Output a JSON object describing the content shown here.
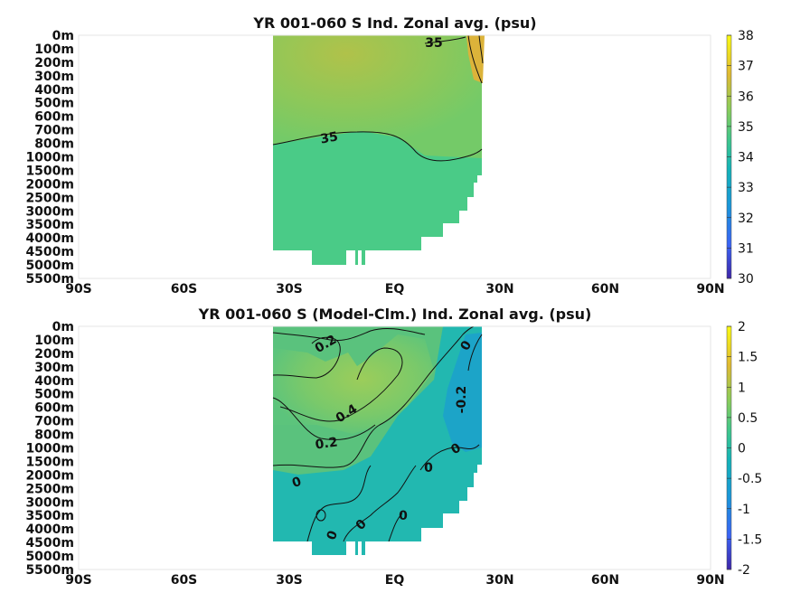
{
  "chart_data": [
    {
      "type": "heatmap",
      "title": "YR 001-060 S Ind. Zonal avg. (psu)",
      "x_ticks": [
        "90S",
        "60S",
        "30S",
        "EQ",
        "30N",
        "60N",
        "90N"
      ],
      "y_ticks": [
        "0m",
        "100m",
        "200m",
        "300m",
        "400m",
        "500m",
        "600m",
        "700m",
        "800m",
        "1000m",
        "1500m",
        "2000m",
        "2500m",
        "3000m",
        "3500m",
        "4000m",
        "4500m",
        "5000m",
        "5500m"
      ],
      "colorbar": {
        "min": 30,
        "max": 38,
        "ticks": [
          "30",
          "31",
          "32",
          "33",
          "34",
          "35",
          "36",
          "37",
          "38"
        ]
      },
      "data_extent_lat": [
        -35,
        25
      ],
      "contour_labels": [
        "35",
        "35"
      ],
      "colors": {
        "background_field": "#4acb87",
        "upper_high": "#a3c451",
        "surface_max": "#e8b030",
        "mid": "#72cc6e"
      }
    },
    {
      "type": "heatmap",
      "title": "YR 001-060 S (Model-Clm.) Ind. Zonal avg. (psu)",
      "x_ticks": [
        "90S",
        "60S",
        "30S",
        "EQ",
        "30N",
        "60N",
        "90N"
      ],
      "y_ticks": [
        "0m",
        "100m",
        "200m",
        "300m",
        "400m",
        "500m",
        "600m",
        "700m",
        "800m",
        "1000m",
        "1500m",
        "2000m",
        "2500m",
        "3000m",
        "3500m",
        "4000m",
        "4500m",
        "5000m",
        "5500m"
      ],
      "colorbar": {
        "min": -2,
        "max": 2,
        "ticks": [
          "-2",
          "-1.5",
          "-1",
          "-0.5",
          "0",
          "0.5",
          "1",
          "1.5",
          "2"
        ]
      },
      "data_extent_lat": [
        -35,
        25
      ],
      "contour_labels": [
        "0.2",
        "0",
        "-0.2",
        "0.4",
        "0.2",
        "0",
        "0",
        "0",
        "0",
        "0",
        "0"
      ],
      "colors": {
        "deep_field": "#22b8b0",
        "upper_positive": "#5ac27d",
        "core_positive": "#8ccb60",
        "north_negative": "#1ca4c8"
      }
    }
  ]
}
